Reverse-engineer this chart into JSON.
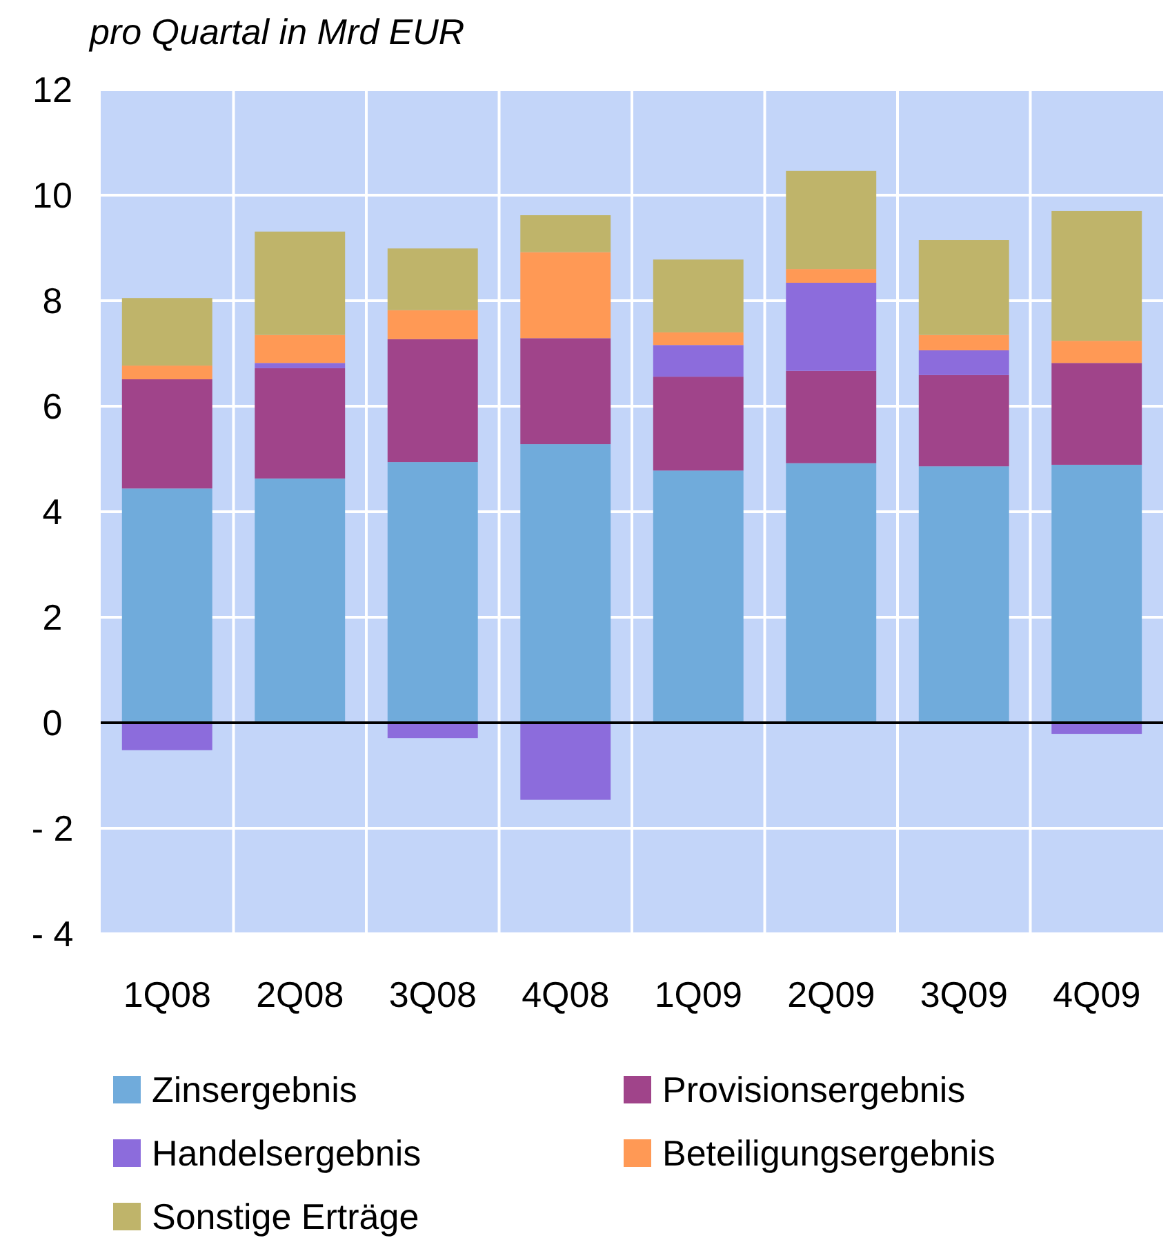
{
  "chart_data": {
    "type": "bar",
    "stacked": true,
    "ylabel": "pro Quartal in Mrd EUR",
    "categories": [
      "1Q08",
      "2Q08",
      "3Q08",
      "4Q08",
      "1Q09",
      "2Q09",
      "3Q09",
      "4Q09"
    ],
    "series": [
      {
        "name": "Zinsergebnis",
        "color": "#70abdb",
        "values": [
          4.44,
          4.63,
          4.94,
          5.28,
          4.78,
          4.92,
          4.86,
          4.89
        ]
      },
      {
        "name": "Provisionsergebnis",
        "color": "#a0448a",
        "values": [
          2.07,
          2.09,
          2.33,
          2.01,
          1.78,
          1.75,
          1.73,
          1.93
        ]
      },
      {
        "name": "Handelsergebnis",
        "color": "#8c6cdc",
        "values": [
          -0.52,
          0.1,
          -0.29,
          -1.46,
          0.6,
          1.67,
          0.47,
          -0.21
        ]
      },
      {
        "name": "Beteiligungsergebnis",
        "color": "#ff9955",
        "values": [
          0.26,
          0.53,
          0.55,
          1.63,
          0.24,
          0.26,
          0.29,
          0.42
        ]
      },
      {
        "name": "Sonstige Erträge",
        "color": "#bfb46a",
        "values": [
          1.28,
          1.96,
          1.17,
          0.7,
          1.38,
          1.86,
          1.8,
          2.46
        ]
      }
    ],
    "ylim": [
      -4,
      12
    ],
    "yticks": [
      {
        "value": -4,
        "label": "- 4"
      },
      {
        "value": -2,
        "label": "- 2"
      },
      0,
      2,
      4,
      6,
      8,
      10,
      12
    ],
    "grid": true,
    "legend": "bottom"
  }
}
